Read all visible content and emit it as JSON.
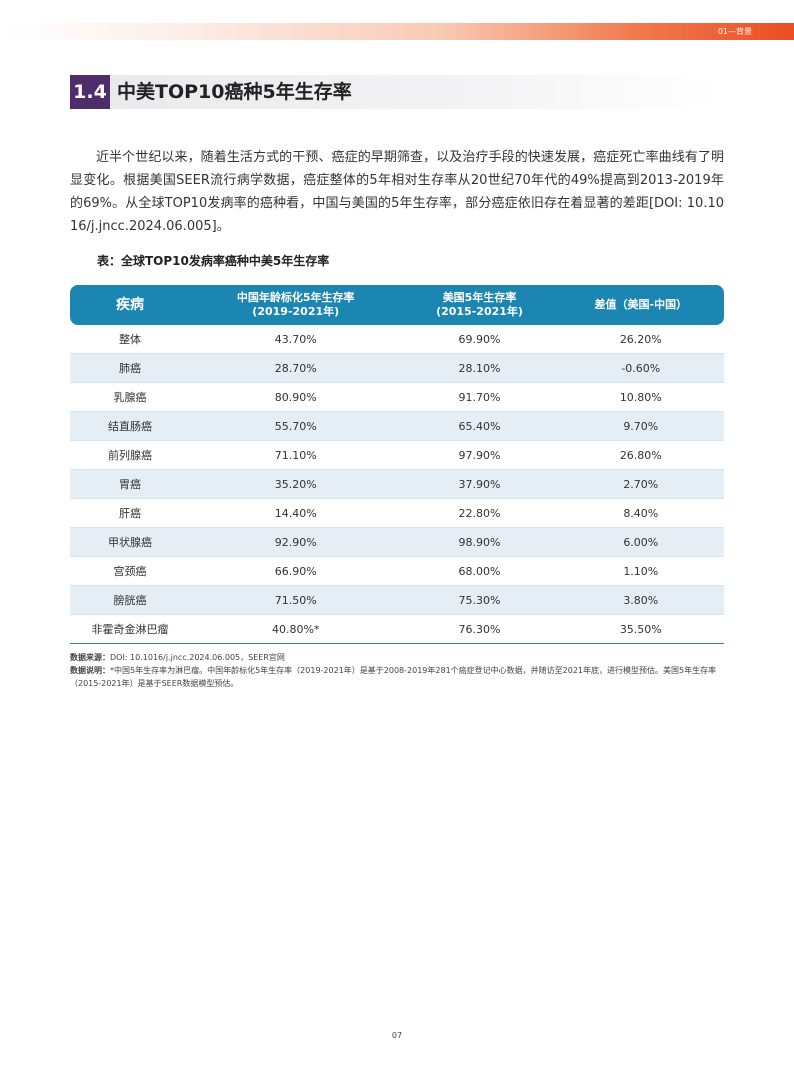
{
  "header": {
    "section_label": "01—背景"
  },
  "title": {
    "number": "1.4",
    "text": "中美TOP10癌种5年生存率"
  },
  "body": {
    "paragraph": "近半个世纪以来，随着生活方式的干预、癌症的早期筛查，以及治疗手段的快速发展，癌症死亡率曲线有了明显变化。根据美国SEER流行病学数据，癌症整体的5年相对生存率从20世纪70年代的49%提高到2013-2019年的69%。从全球TOP10发病率的癌种看，中国与美国的5年生存率，部分癌症依旧存在着显著的差距[DOI: 10.1016/j.jncc.2024.06.005]。"
  },
  "table": {
    "caption": "表：全球TOP10发病率癌种中美5年生存率",
    "headers": {
      "disease": "疾病",
      "china_line1": "中国年龄标化5年生存率",
      "china_line2": "(2019-2021年)",
      "us_line1": "美国5年生存率",
      "us_line2": "(2015-2021年)",
      "diff": "差值（美国-中国）"
    },
    "rows": [
      {
        "disease": "整体",
        "china": "43.70%",
        "us": "69.90%",
        "diff": "26.20%"
      },
      {
        "disease": "肺癌",
        "china": "28.70%",
        "us": "28.10%",
        "diff": "-0.60%"
      },
      {
        "disease": "乳腺癌",
        "china": "80.90%",
        "us": "91.70%",
        "diff": "10.80%"
      },
      {
        "disease": "结直肠癌",
        "china": "55.70%",
        "us": "65.40%",
        "diff": "9.70%"
      },
      {
        "disease": "前列腺癌",
        "china": "71.10%",
        "us": "97.90%",
        "diff": "26.80%"
      },
      {
        "disease": "胃癌",
        "china": "35.20%",
        "us": "37.90%",
        "diff": "2.70%"
      },
      {
        "disease": "肝癌",
        "china": "14.40%",
        "us": "22.80%",
        "diff": "8.40%"
      },
      {
        "disease": "甲状腺癌",
        "china": "92.90%",
        "us": "98.90%",
        "diff": "6.00%"
      },
      {
        "disease": "宫颈癌",
        "china": "66.90%",
        "us": "68.00%",
        "diff": "1.10%"
      },
      {
        "disease": "膀胱癌",
        "china": "71.50%",
        "us": "75.30%",
        "diff": "3.80%"
      },
      {
        "disease": "非霍奇金淋巴瘤",
        "china": "40.80%*",
        "us": "76.30%",
        "diff": "35.50%"
      }
    ]
  },
  "notes": {
    "source_label": "数据来源：",
    "source_text": "DOI: 10.1016/j.jncc.2024.06.005，SEER官网",
    "explain_label": "数据说明：",
    "explain_text": "*中国5年生存率为淋巴瘤。中国年龄标化5年生存率（2019-2021年）是基于2008-2019年281个癌症登记中心数据，并随访至2021年底，进行模型预估。美国5年生存率（2015-2021年）是基于SEER数据模型预估。"
  },
  "footer": {
    "page_number": "07"
  }
}
